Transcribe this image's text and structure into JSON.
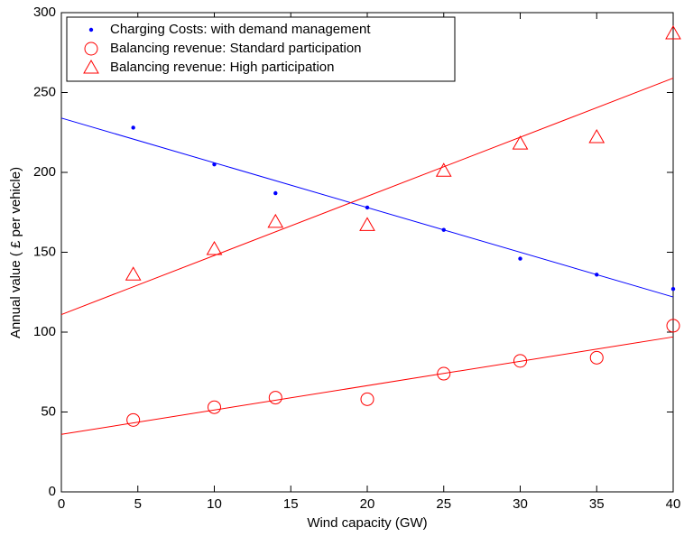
{
  "chart_data": {
    "type": "scatter",
    "x_label": "Wind capacity (GW)",
    "y_label": "Annual value ( £ per vehicle)",
    "xlim": [
      0,
      40
    ],
    "xticks": [
      0,
      5,
      10,
      15,
      20,
      25,
      30,
      35,
      40
    ],
    "ylim": [
      0,
      300
    ],
    "yticks": [
      0,
      50,
      100,
      150,
      200,
      250,
      300
    ],
    "legend": "upper left",
    "series": [
      {
        "name": "Charging Costs: with demand management",
        "color": "#0000ff",
        "marker": "dot",
        "x": [
          4.7,
          10,
          14,
          20,
          25,
          30,
          35,
          40
        ],
        "values": [
          228,
          205,
          187,
          178,
          164,
          146,
          136,
          127
        ],
        "fit": {
          "x": [
            0,
            40
          ],
          "values": [
            234,
            122
          ]
        }
      },
      {
        "name": "Balancing revenue: Standard participation",
        "color": "#ff0000",
        "marker": "circle",
        "x": [
          4.7,
          10,
          14,
          20,
          25,
          30,
          35,
          40
        ],
        "values": [
          45,
          53,
          59,
          58,
          74,
          82,
          84,
          104
        ],
        "fit": {
          "x": [
            0,
            40
          ],
          "values": [
            36,
            97
          ]
        }
      },
      {
        "name": "Balancing revenue: High participation",
        "color": "#ff0000",
        "marker": "triangle",
        "x": [
          4.7,
          10,
          14,
          20,
          25,
          30,
          35,
          40
        ],
        "values": [
          136,
          152,
          169,
          167,
          201,
          218,
          222,
          287
        ],
        "fit": {
          "x": [
            0,
            40
          ],
          "values": [
            111,
            259
          ]
        }
      }
    ]
  }
}
